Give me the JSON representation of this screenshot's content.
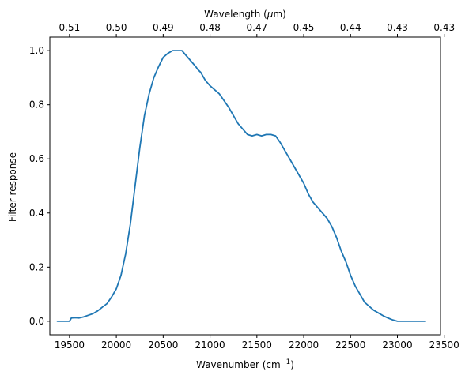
{
  "chart_data": {
    "type": "line",
    "xlabel": "Wavenumber (cm",
    "xlabel_sup": "−1",
    "xlabel_suffix": ")",
    "ylabel": "Filter response",
    "top_xlabel": "Wavelength (",
    "top_xlabel_mu": "μ",
    "top_xlabel_suffix": "m)",
    "xlim": [
      19290,
      23460
    ],
    "ylim": [
      -0.05,
      1.05
    ],
    "x_ticks": [
      19500,
      20000,
      20500,
      21000,
      21500,
      22000,
      22500,
      23000,
      23500
    ],
    "y_ticks": [
      "0.0",
      "0.2",
      "0.4",
      "0.6",
      "0.8",
      "1.0"
    ],
    "top_ticks": [
      {
        "wavenumber": 19500,
        "label": "0.51"
      },
      {
        "wavenumber": 20000,
        "label": "0.50"
      },
      {
        "wavenumber": 20500,
        "label": "0.49"
      },
      {
        "wavenumber": 21000,
        "label": "0.48"
      },
      {
        "wavenumber": 21500,
        "label": "0.47"
      },
      {
        "wavenumber": 22000,
        "label": "0.45"
      },
      {
        "wavenumber": 22500,
        "label": "0.44"
      },
      {
        "wavenumber": 23000,
        "label": "0.43"
      },
      {
        "wavenumber": 23500,
        "label": "0.43"
      }
    ],
    "line_color": "#1f77b4",
    "grid": false,
    "series": [
      {
        "x": [
          19370,
          19450,
          19500,
          19520,
          19560,
          19600,
          19650,
          19700,
          19750,
          19800,
          19850,
          19900,
          19950,
          20000,
          20050,
          20100,
          20150,
          20200,
          20250,
          20300,
          20350,
          20400,
          20450,
          20500,
          20550,
          20600,
          20650,
          20700,
          20750,
          20800,
          20850,
          20870,
          20900,
          20950,
          21000,
          21050,
          21100,
          21150,
          21200,
          21250,
          21300,
          21350,
          21400,
          21450,
          21500,
          21550,
          21600,
          21650,
          21700,
          21750,
          21800,
          21850,
          21900,
          21950,
          22000,
          22050,
          22100,
          22150,
          22200,
          22250,
          22300,
          22350,
          22400,
          22450,
          22500,
          22550,
          22600,
          22650,
          22700,
          22750,
          22800,
          22850,
          22900,
          22950,
          23000,
          23050,
          23100,
          23150,
          23200,
          23250,
          23300
        ],
        "y": [
          0.0,
          0.0,
          0.0,
          0.012,
          0.013,
          0.012,
          0.016,
          0.022,
          0.028,
          0.038,
          0.052,
          0.065,
          0.09,
          0.12,
          0.17,
          0.25,
          0.36,
          0.5,
          0.64,
          0.76,
          0.84,
          0.9,
          0.94,
          0.975,
          0.99,
          1.0,
          1.0,
          1.0,
          0.98,
          0.96,
          0.94,
          0.93,
          0.92,
          0.89,
          0.87,
          0.855,
          0.84,
          0.815,
          0.79,
          0.76,
          0.73,
          0.71,
          0.69,
          0.685,
          0.69,
          0.685,
          0.69,
          0.69,
          0.685,
          0.66,
          0.63,
          0.6,
          0.57,
          0.54,
          0.51,
          0.47,
          0.44,
          0.42,
          0.4,
          0.38,
          0.35,
          0.31,
          0.26,
          0.22,
          0.17,
          0.13,
          0.1,
          0.07,
          0.055,
          0.04,
          0.03,
          0.02,
          0.012,
          0.005,
          0.0,
          0.0,
          0.0,
          0.0,
          0.0,
          0.0,
          0.0
        ]
      }
    ]
  }
}
